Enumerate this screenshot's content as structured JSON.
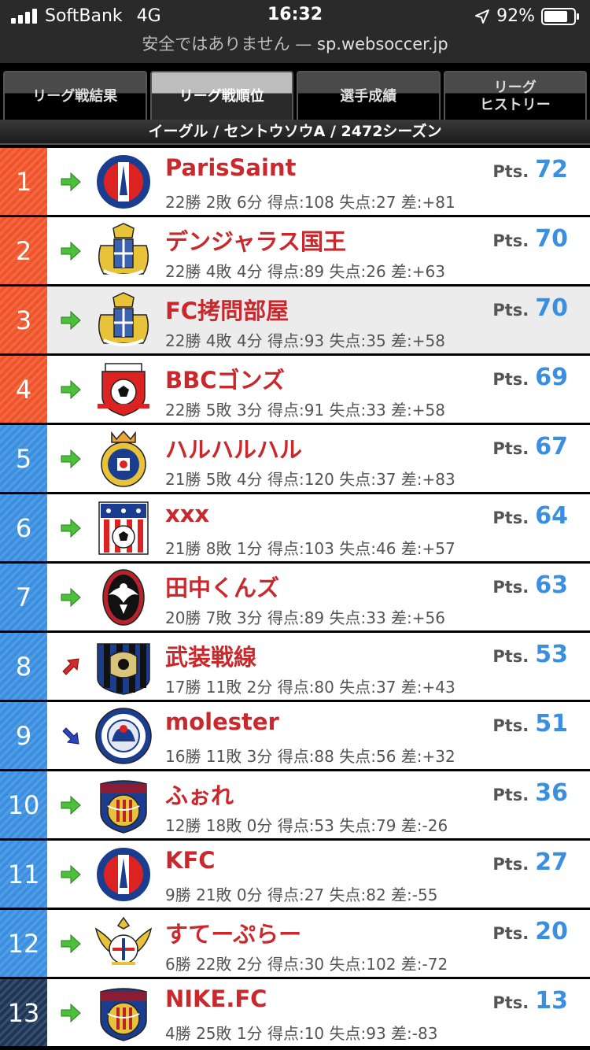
{
  "status_bar": {
    "carrier": "SoftBank",
    "network": "4G",
    "time": "16:32",
    "battery": "92%",
    "battery_level": 0.92,
    "url_warning": "安全ではありません —",
    "url_host": "sp.websoccer.jp"
  },
  "tabs": [
    {
      "label": "リーグ戦結果"
    },
    {
      "label": "リーグ戦順位"
    },
    {
      "label": "選手成績"
    },
    {
      "label": "リーグ\nヒストリー"
    }
  ],
  "season_title": "イーグル / セントウソウA / 2472シーズン",
  "pts_label": "Pts.",
  "colors": {
    "promotion": "#f0542a",
    "mid": "#3a8fe0",
    "relegation": "#1d3656",
    "team_name": "#c9282d",
    "points": "#3a8fe0"
  },
  "standings": [
    {
      "rank": "1",
      "trend": "same",
      "crest": "psg-crest-icon",
      "name": "ParisSaint",
      "record": "22勝 2敗 6分 得点:108 失点:27 差:+81",
      "pts": "72",
      "zone": "promo"
    },
    {
      "rank": "2",
      "trend": "same",
      "crest": "lion-crest-icon",
      "name": "デンジャラス国王",
      "record": "22勝 4敗 4分 得点:89 失点:26 差:+63",
      "pts": "70",
      "zone": "promo"
    },
    {
      "rank": "3",
      "trend": "same",
      "crest": "lion-crest-icon",
      "name": "FC拷問部屋",
      "record": "22勝 4敗 4分 得点:93 失点:35 差:+58",
      "pts": "70",
      "zone": "promo",
      "highlight": true
    },
    {
      "rank": "4",
      "trend": "same",
      "crest": "ball-crest-icon",
      "name": "BBCゴンズ",
      "record": "22勝 5敗 3分 得点:91 失点:33 差:+58",
      "pts": "69",
      "zone": "promo"
    },
    {
      "rank": "5",
      "trend": "same",
      "crest": "crown-crest-icon",
      "name": "ハルハルハル",
      "record": "21勝 5敗 4分 得点:120 失点:37 差:+83",
      "pts": "67",
      "zone": "mid"
    },
    {
      "rank": "6",
      "trend": "same",
      "crest": "stars-shield-icon",
      "name": "xxx",
      "record": "21勝 8敗 1分 得点:103 失点:46 差:+57",
      "pts": "64",
      "zone": "mid"
    },
    {
      "rank": "7",
      "trend": "same",
      "crest": "eagle-crest-icon",
      "name": "田中くんズ",
      "record": "20勝 7敗 3分 得点:89 失点:33 差:+56",
      "pts": "63",
      "zone": "mid"
    },
    {
      "rank": "8",
      "trend": "up",
      "crest": "striped-crest-icon",
      "name": "武装戦線",
      "record": "17勝 11敗 2分 得点:80 失点:37 差:+43",
      "pts": "53",
      "zone": "mid"
    },
    {
      "rank": "9",
      "trend": "down",
      "crest": "lions-round-icon",
      "name": "molester",
      "record": "16勝 11敗 3分 得点:88 失点:56 差:+32",
      "pts": "51",
      "zone": "mid"
    },
    {
      "rank": "10",
      "trend": "same",
      "crest": "barca-crest-icon",
      "name": "ふぉれ",
      "record": "12勝 18敗 0分 得点:53 失点:79 差:-26",
      "pts": "36",
      "zone": "mid"
    },
    {
      "rank": "11",
      "trend": "same",
      "crest": "psg-crest-icon",
      "name": "KFC",
      "record": "9勝 21敗 0分 得点:27 失点:82 差:-55",
      "pts": "27",
      "zone": "mid"
    },
    {
      "rank": "12",
      "trend": "same",
      "crest": "eagle-wing-crest-icon",
      "name": "すてーぷらー",
      "record": "6勝 22敗 2分 得点:30 失点:102 差:-72",
      "pts": "20",
      "zone": "mid"
    },
    {
      "rank": "13",
      "trend": "same",
      "crest": "barca-crest-icon",
      "name": "NIKE.FC",
      "record": "4勝 25敗 1分 得点:10 失点:93 差:-83",
      "pts": "13",
      "zone": "rele"
    }
  ]
}
